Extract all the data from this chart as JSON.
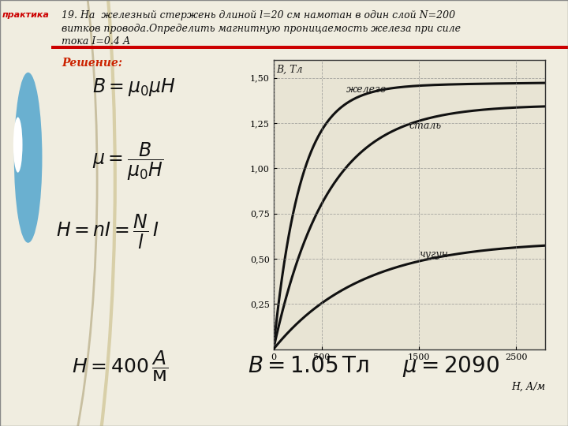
{
  "title_line1": "19. На  железный стержень длиной l=20 см намотан в один слой N=200",
  "title_line2": "витков провода.Определить магнитную проницаемость железа при силе",
  "title_line3": "тока I=0.4 А",
  "solution_label": "Решение:",
  "ylabel": "В, Тл",
  "xlabel_text": "Н, А/м",
  "label_zhelezo": "железо",
  "label_stal": "сталь",
  "label_chugun": "чугун",
  "bg_color": "#f0ede0",
  "plot_bg": "#e8e4d4",
  "left_strip_color": "#c8bfa0",
  "header_line_color": "#cc0000",
  "curve_color": "#111111",
  "grid_color": "#888888",
  "title_color": "#111111",
  "formula_color": "#111111",
  "solution_color": "#cc2200",
  "praktika_color": "#cc0000",
  "circle1_color": "#c8b870",
  "circle2_color": "#6ab0d0",
  "xticks": [
    0,
    500,
    1500,
    2500
  ],
  "yticks": [
    0.25,
    0.5,
    0.75,
    1.0,
    1.25,
    1.5
  ],
  "xlim": [
    0,
    2800
  ],
  "ylim": [
    0,
    1.6
  ]
}
